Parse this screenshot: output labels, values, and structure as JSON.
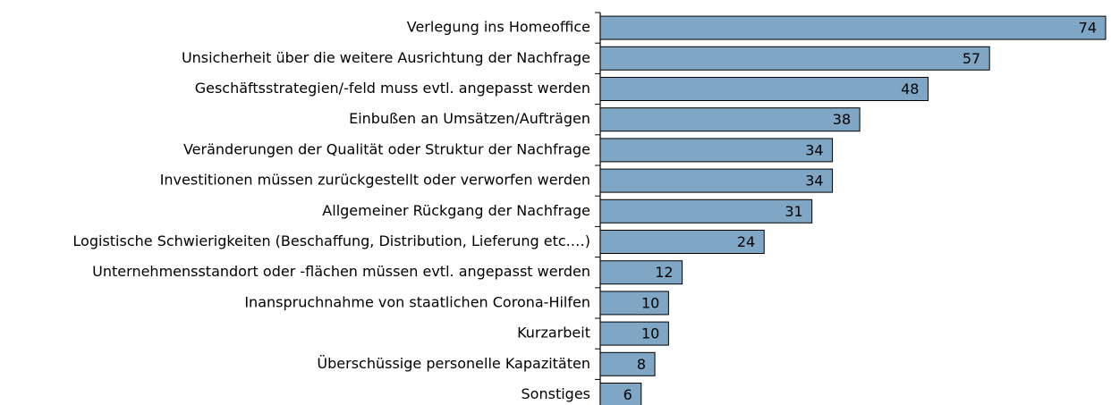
{
  "chart_data": {
    "type": "bar",
    "orientation": "horizontal",
    "categories": [
      "Verlegung ins Homeoffice",
      "Unsicherheit über die weitere Ausrichtung der Nachfrage",
      "Geschäftsstrategien/-feld muss evtl. angepasst werden",
      "Einbußen an Umsätzen/Aufträgen",
      "Veränderungen der Qualität oder Struktur der Nachfrage",
      "Investitionen müssen zurückgestellt oder verworfen werden",
      "Allgemeiner Rückgang der Nachfrage",
      "Logistische Schwierigkeiten (Beschaffung, Distribution, Lieferung etc.…)",
      "Unternehmensstandort oder -flächen müssen evtl. angepasst werden",
      "Inanspruchnahme von staatlichen Corona-Hilfen",
      "Kurzarbeit",
      "Überschüssige personelle Kapazitäten",
      "Sonstiges"
    ],
    "values": [
      74,
      57,
      48,
      38,
      34,
      34,
      31,
      24,
      12,
      10,
      10,
      8,
      6
    ],
    "color": "#7fa7c5"
  }
}
